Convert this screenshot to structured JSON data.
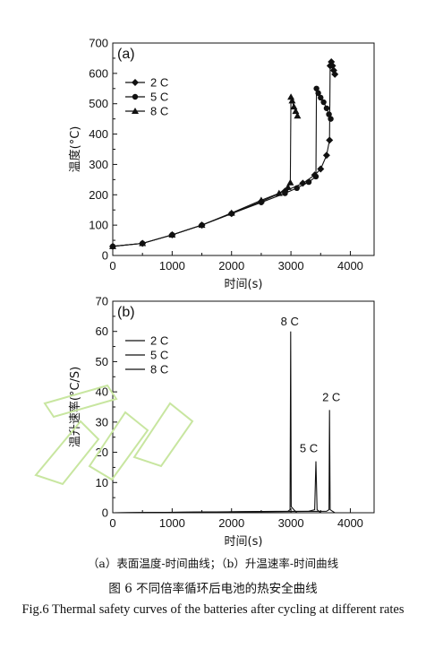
{
  "chart_data": [
    {
      "type": "line",
      "panel_label": "(a)",
      "xlabel": "时间(s)",
      "ylabel": "温度(°C)",
      "xlim": [
        0,
        4400
      ],
      "ylim": [
        0,
        700
      ],
      "xticks": [
        0,
        1000,
        2000,
        3000,
        4000
      ],
      "yticks": [
        0,
        100,
        200,
        300,
        400,
        500,
        600,
        700
      ],
      "legend_position": "upper-left",
      "series": [
        {
          "name": "2 C",
          "marker": "diamond",
          "x": [
            0,
            500,
            1000,
            1500,
            2000,
            2500,
            2900,
            3200,
            3400,
            3500,
            3600,
            3650,
            3660,
            3680,
            3700,
            3720,
            3740
          ],
          "y": [
            30,
            40,
            68,
            100,
            138,
            178,
            212,
            238,
            265,
            285,
            330,
            380,
            625,
            638,
            625,
            610,
            597
          ]
        },
        {
          "name": "5 C",
          "marker": "circle",
          "x": [
            0,
            500,
            1000,
            1500,
            2000,
            2500,
            2900,
            3100,
            3300,
            3420,
            3430,
            3460,
            3500,
            3550,
            3600,
            3640,
            3670
          ],
          "y": [
            30,
            40,
            68,
            100,
            138,
            175,
            205,
            222,
            242,
            260,
            550,
            535,
            520,
            505,
            485,
            465,
            450
          ]
        },
        {
          "name": "8 C",
          "marker": "triangle",
          "x": [
            0,
            500,
            1000,
            1500,
            2000,
            2500,
            2800,
            2950,
            2990,
            3000,
            3020,
            3050,
            3080,
            3110
          ],
          "y": [
            30,
            40,
            68,
            100,
            140,
            182,
            205,
            225,
            240,
            522,
            510,
            490,
            475,
            460
          ]
        }
      ]
    },
    {
      "type": "line",
      "panel_label": "(b)",
      "xlabel": "时间(s)",
      "ylabel": "温升速率(°C/S)",
      "xlim": [
        0,
        4400
      ],
      "ylim": [
        0,
        70
      ],
      "xticks": [
        0,
        1000,
        2000,
        3000,
        4000
      ],
      "yticks": [
        0,
        10,
        20,
        30,
        40,
        50,
        60,
        70
      ],
      "legend_position": "upper-left",
      "series": [
        {
          "name": "2 C",
          "x": [
            0,
            3600,
            3640,
            3650,
            3660,
            3700,
            3740
          ],
          "y": [
            0,
            0.5,
            1,
            34,
            1,
            0.5,
            0
          ]
        },
        {
          "name": "5 C",
          "x": [
            0,
            3300,
            3400,
            3420,
            3440,
            3500
          ],
          "y": [
            0,
            0.5,
            1,
            17,
            1,
            0
          ]
        },
        {
          "name": "8 C",
          "x": [
            0,
            2950,
            2985,
            2995,
            3005,
            3050,
            3100
          ],
          "y": [
            0,
            0.5,
            1,
            60,
            2,
            1,
            0
          ]
        }
      ],
      "annotations": [
        {
          "text": "8 C",
          "x": 2980,
          "y": 62
        },
        {
          "text": "5 C",
          "x": 3300,
          "y": 20
        },
        {
          "text": "2 C",
          "x": 3680,
          "y": 37
        }
      ]
    }
  ],
  "caption": {
    "subcaption": "（a）表面温度-时间曲线；（b）升温速率-时间曲线",
    "title_cn": "图 6  不同倍率循环后电池的热安全曲线",
    "title_en": "Fig.6 Thermal safety curves of the batteries after cycling at different rates"
  },
  "colors": {
    "line": "#111111",
    "watermark": "#c8e6a0"
  }
}
